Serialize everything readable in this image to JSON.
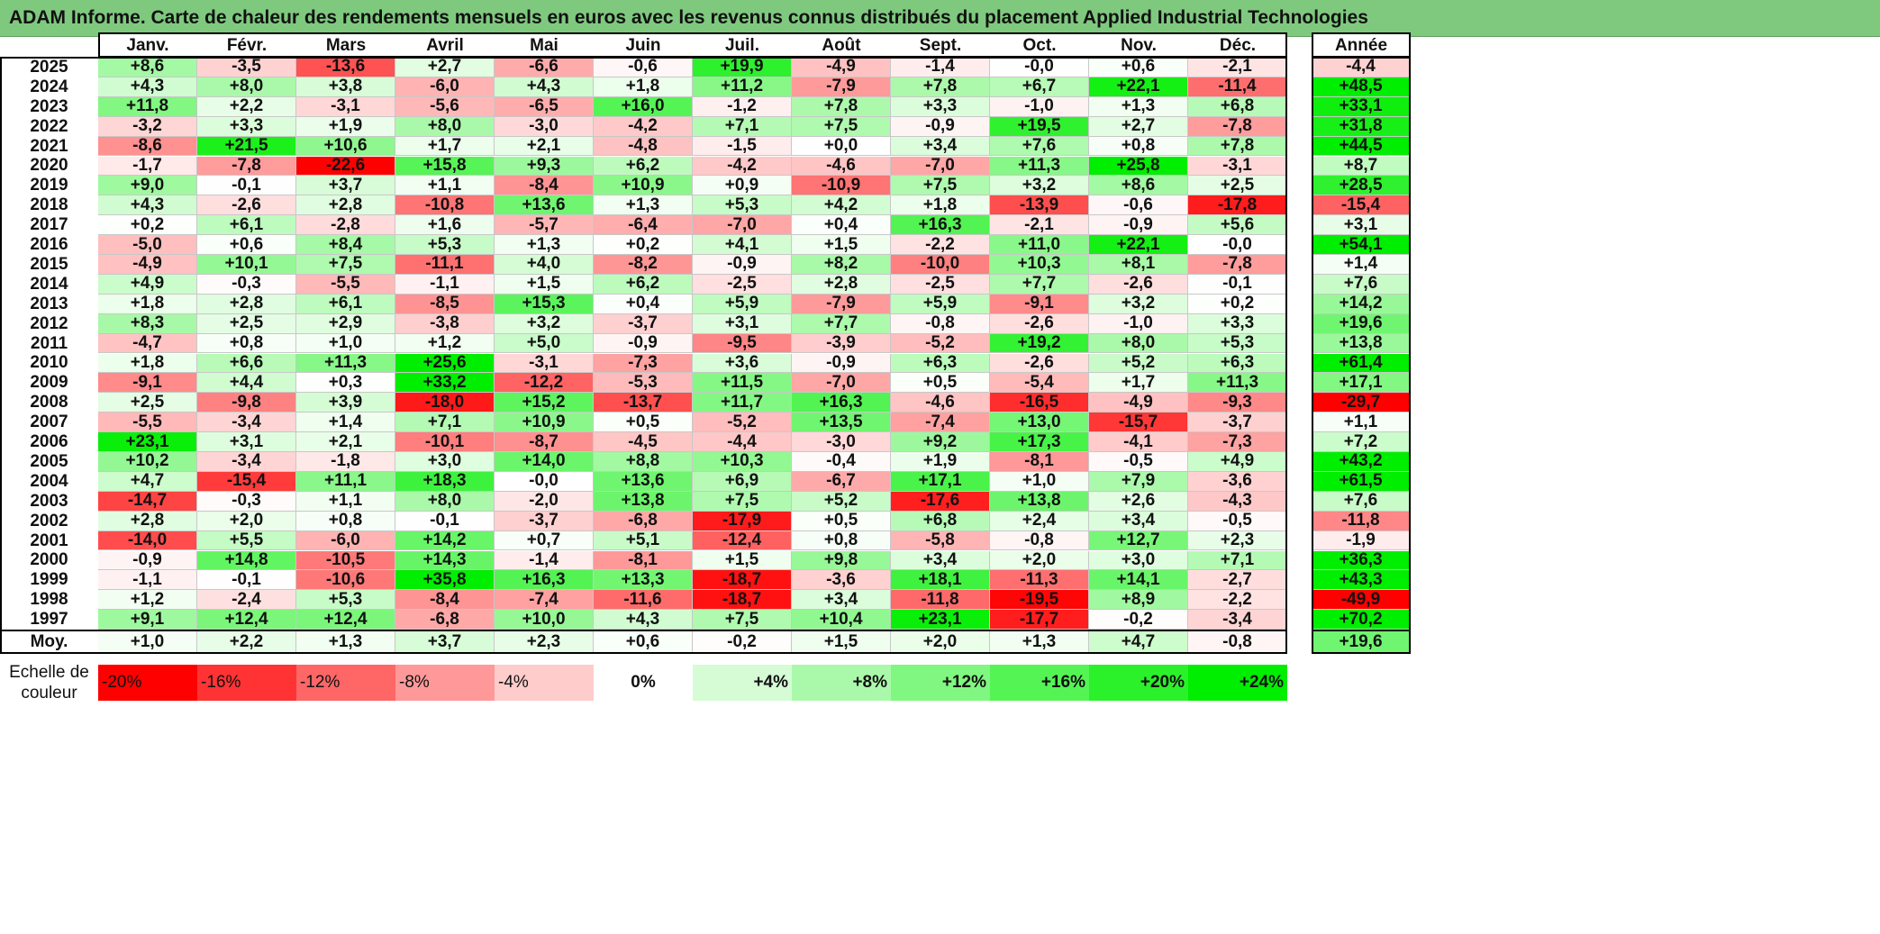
{
  "title": "ADAM Informe. Carte de chaleur des rendements mensuels en euros avec les revenus connus distribués du placement Applied Industrial Technologies",
  "chart_data": {
    "type": "heatmap",
    "title": "ADAM Informe. Carte de chaleur des rendements mensuels en euros avec les revenus connus distribués du placement Applied Industrial Technologies",
    "months": [
      "Janv.",
      "Févr.",
      "Mars",
      "Avril",
      "Mai",
      "Juin",
      "Juil.",
      "Août",
      "Sept.",
      "Oct.",
      "Nov.",
      "Déc."
    ],
    "year_header": "Année",
    "rows": [
      {
        "label": "2025",
        "values": [
          "+8,6",
          "-3,5",
          "-13,6",
          "+2,7",
          "-6,6",
          "-0,6",
          "+19,9",
          "-4,9",
          "-1,4",
          "-0,0",
          "+0,6",
          "-2,1"
        ],
        "annual": "-4,4"
      },
      {
        "label": "2024",
        "values": [
          "+4,3",
          "+8,0",
          "+3,8",
          "-6,0",
          "+4,3",
          "+1,8",
          "+11,2",
          "-7,9",
          "+7,8",
          "+6,7",
          "+22,1",
          "-11,4"
        ],
        "annual": "+48,5"
      },
      {
        "label": "2023",
        "values": [
          "+11,8",
          "+2,2",
          "-3,1",
          "-5,6",
          "-6,5",
          "+16,0",
          "-1,2",
          "+7,8",
          "+3,3",
          "-1,0",
          "+1,3",
          "+6,8"
        ],
        "annual": "+33,1"
      },
      {
        "label": "2022",
        "values": [
          "-3,2",
          "+3,3",
          "+1,9",
          "+8,0",
          "-3,0",
          "-4,2",
          "+7,1",
          "+7,5",
          "-0,9",
          "+19,5",
          "+2,7",
          "-7,8"
        ],
        "annual": "+31,8"
      },
      {
        "label": "2021",
        "values": [
          "-8,6",
          "+21,5",
          "+10,6",
          "+1,7",
          "+2,1",
          "-4,8",
          "-1,5",
          "+0,0",
          "+3,4",
          "+7,6",
          "+0,8",
          "+7,8"
        ],
        "annual": "+44,5"
      },
      {
        "label": "2020",
        "values": [
          "-1,7",
          "-7,8",
          "-22,6",
          "+15,8",
          "+9,3",
          "+6,2",
          "-4,2",
          "-4,6",
          "-7,0",
          "+11,3",
          "+25,8",
          "-3,1"
        ],
        "annual": "+8,7"
      },
      {
        "label": "2019",
        "values": [
          "+9,0",
          "-0,1",
          "+3,7",
          "+1,1",
          "-8,4",
          "+10,9",
          "+0,9",
          "-10,9",
          "+7,5",
          "+3,2",
          "+8,6",
          "+2,5"
        ],
        "annual": "+28,5"
      },
      {
        "label": "2018",
        "values": [
          "+4,3",
          "-2,6",
          "+2,8",
          "-10,8",
          "+13,6",
          "+1,3",
          "+5,3",
          "+4,2",
          "+1,8",
          "-13,9",
          "-0,6",
          "-17,8"
        ],
        "annual": "-15,4"
      },
      {
        "label": "2017",
        "values": [
          "+0,2",
          "+6,1",
          "-2,8",
          "+1,6",
          "-5,7",
          "-6,4",
          "-7,0",
          "+0,4",
          "+16,3",
          "-2,1",
          "-0,9",
          "+5,6"
        ],
        "annual": "+3,1"
      },
      {
        "label": "2016",
        "values": [
          "-5,0",
          "+0,6",
          "+8,4",
          "+5,3",
          "+1,3",
          "+0,2",
          "+4,1",
          "+1,5",
          "-2,2",
          "+11,0",
          "+22,1",
          "-0,0"
        ],
        "annual": "+54,1"
      },
      {
        "label": "2015",
        "values": [
          "-4,9",
          "+10,1",
          "+7,5",
          "-11,1",
          "+4,0",
          "-8,2",
          "-0,9",
          "+8,2",
          "-10,0",
          "+10,3",
          "+8,1",
          "-7,8"
        ],
        "annual": "+1,4"
      },
      {
        "label": "2014",
        "values": [
          "+4,9",
          "-0,3",
          "-5,5",
          "-1,1",
          "+1,5",
          "+6,2",
          "-2,5",
          "+2,8",
          "-2,5",
          "+7,7",
          "-2,6",
          "-0,1"
        ],
        "annual": "+7,6"
      },
      {
        "label": "2013",
        "values": [
          "+1,8",
          "+2,8",
          "+6,1",
          "-8,5",
          "+15,3",
          "+0,4",
          "+5,9",
          "-7,9",
          "+5,9",
          "-9,1",
          "+3,2",
          "+0,2"
        ],
        "annual": "+14,2"
      },
      {
        "label": "2012",
        "values": [
          "+8,3",
          "+2,5",
          "+2,9",
          "-3,8",
          "+3,2",
          "-3,7",
          "+3,1",
          "+7,7",
          "-0,8",
          "-2,6",
          "-1,0",
          "+3,3"
        ],
        "annual": "+19,6"
      },
      {
        "label": "2011",
        "values": [
          "-4,7",
          "+0,8",
          "+1,0",
          "+1,2",
          "+5,0",
          "-0,9",
          "-9,5",
          "-3,9",
          "-5,2",
          "+19,2",
          "+8,0",
          "+5,3"
        ],
        "annual": "+13,8"
      },
      {
        "label": "2010",
        "values": [
          "+1,8",
          "+6,6",
          "+11,3",
          "+25,6",
          "-3,1",
          "-7,3",
          "+3,6",
          "-0,9",
          "+6,3",
          "-2,6",
          "+5,2",
          "+6,3"
        ],
        "annual": "+61,4"
      },
      {
        "label": "2009",
        "values": [
          "-9,1",
          "+4,4",
          "+0,3",
          "+33,2",
          "-12,2",
          "-5,3",
          "+11,5",
          "-7,0",
          "+0,5",
          "-5,4",
          "+1,7",
          "+11,3"
        ],
        "annual": "+17,1"
      },
      {
        "label": "2008",
        "values": [
          "+2,5",
          "-9,8",
          "+3,9",
          "-18,0",
          "+15,2",
          "-13,7",
          "+11,7",
          "+16,3",
          "-4,6",
          "-16,5",
          "-4,9",
          "-9,3"
        ],
        "annual": "-29,7"
      },
      {
        "label": "2007",
        "values": [
          "-5,5",
          "-3,4",
          "+1,4",
          "+7,1",
          "+10,9",
          "+0,5",
          "-5,2",
          "+13,5",
          "-7,4",
          "+13,0",
          "-15,7",
          "-3,7"
        ],
        "annual": "+1,1"
      },
      {
        "label": "2006",
        "values": [
          "+23,1",
          "+3,1",
          "+2,1",
          "-10,1",
          "-8,7",
          "-4,5",
          "-4,4",
          "-3,0",
          "+9,2",
          "+17,3",
          "-4,1",
          "-7,3"
        ],
        "annual": "+7,2"
      },
      {
        "label": "2005",
        "values": [
          "+10,2",
          "-3,4",
          "-1,8",
          "+3,0",
          "+14,0",
          "+8,8",
          "+10,3",
          "-0,4",
          "+1,9",
          "-8,1",
          "-0,5",
          "+4,9"
        ],
        "annual": "+43,2"
      },
      {
        "label": "2004",
        "values": [
          "+4,7",
          "-15,4",
          "+11,1",
          "+18,3",
          "-0,0",
          "+13,6",
          "+6,9",
          "-6,7",
          "+17,1",
          "+1,0",
          "+7,9",
          "-3,6"
        ],
        "annual": "+61,5"
      },
      {
        "label": "2003",
        "values": [
          "-14,7",
          "-0,3",
          "+1,1",
          "+8,0",
          "-2,0",
          "+13,8",
          "+7,5",
          "+5,2",
          "-17,6",
          "+13,8",
          "+2,6",
          "-4,3"
        ],
        "annual": "+7,6"
      },
      {
        "label": "2002",
        "values": [
          "+2,8",
          "+2,0",
          "+0,8",
          "-0,1",
          "-3,7",
          "-6,8",
          "-17,9",
          "+0,5",
          "+6,8",
          "+2,4",
          "+3,4",
          "-0,5"
        ],
        "annual": "-11,8"
      },
      {
        "label": "2001",
        "values": [
          "-14,0",
          "+5,5",
          "-6,0",
          "+14,2",
          "+0,7",
          "+5,1",
          "-12,4",
          "+0,8",
          "-5,8",
          "-0,8",
          "+12,7",
          "+2,3"
        ],
        "annual": "-1,9"
      },
      {
        "label": "2000",
        "values": [
          "-0,9",
          "+14,8",
          "-10,5",
          "+14,3",
          "-1,4",
          "-8,1",
          "+1,5",
          "+9,8",
          "+3,4",
          "+2,0",
          "+3,0",
          "+7,1"
        ],
        "annual": "+36,3"
      },
      {
        "label": "1999",
        "values": [
          "-1,1",
          "-0,1",
          "-10,6",
          "+35,8",
          "+16,3",
          "+13,3",
          "-18,7",
          "-3,6",
          "+18,1",
          "-11,3",
          "+14,1",
          "-2,7"
        ],
        "annual": "+43,3"
      },
      {
        "label": "1998",
        "values": [
          "+1,2",
          "-2,4",
          "+5,3",
          "-8,4",
          "-7,4",
          "-11,6",
          "-18,7",
          "+3,4",
          "-11,8",
          "-19,5",
          "+8,9",
          "-2,2"
        ],
        "annual": "-49,9"
      },
      {
        "label": "1997",
        "values": [
          "+9,1",
          "+12,4",
          "+12,4",
          "-6,8",
          "+10,0",
          "+4,3",
          "+7,5",
          "+10,4",
          "+23,1",
          "-17,7",
          "-0,2",
          "-3,4"
        ],
        "annual": "+70,2"
      }
    ],
    "average": {
      "label": "Moy.",
      "values": [
        "+1,0",
        "+2,2",
        "+1,3",
        "+3,7",
        "+2,3",
        "+0,6",
        "-0,2",
        "+1,5",
        "+2,0",
        "+1,3",
        "+4,7",
        "-0,8"
      ],
      "annual": "+19,6"
    },
    "color_scale": {
      "label": "Echelle de couleur",
      "stops": [
        {
          "label": "-20%",
          "value": -20
        },
        {
          "label": "-16%",
          "value": -16
        },
        {
          "label": "-12%",
          "value": -12
        },
        {
          "label": "-8%",
          "value": -8
        },
        {
          "label": "-4%",
          "value": -4
        },
        {
          "label": "0%",
          "value": 0
        },
        {
          "label": "+4%",
          "value": 4
        },
        {
          "label": "+8%",
          "value": 8
        },
        {
          "label": "+12%",
          "value": 12
        },
        {
          "label": "+16%",
          "value": 16
        },
        {
          "label": "+20%",
          "value": 20
        },
        {
          "label": "+24%",
          "value": 24
        }
      ]
    },
    "colors": {
      "negative_max": "#ff0000",
      "zero": "#ffffff",
      "positive_max": "#00ee00",
      "title_bg": "#7fc97f"
    }
  }
}
